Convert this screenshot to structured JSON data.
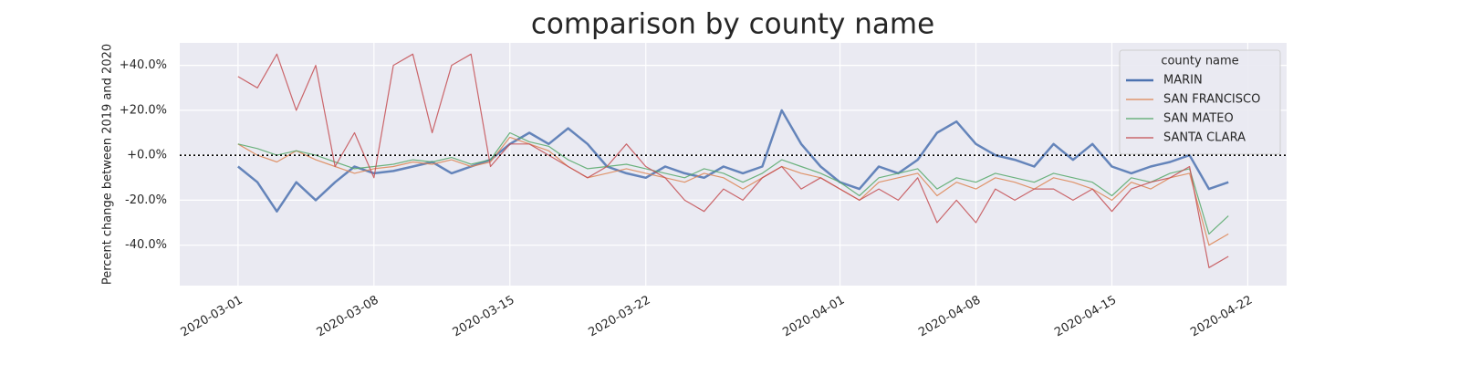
{
  "chart_data": {
    "type": "line",
    "title": "comparison by county name",
    "y_label": "Percent change between 2019 and 2020",
    "x": [
      "2020-03-01",
      "2020-03-02",
      "2020-03-03",
      "2020-03-04",
      "2020-03-05",
      "2020-03-06",
      "2020-03-07",
      "2020-03-08",
      "2020-03-09",
      "2020-03-10",
      "2020-03-11",
      "2020-03-12",
      "2020-03-13",
      "2020-03-14",
      "2020-03-15",
      "2020-03-16",
      "2020-03-17",
      "2020-03-18",
      "2020-03-19",
      "2020-03-20",
      "2020-03-21",
      "2020-03-22",
      "2020-03-23",
      "2020-03-24",
      "2020-03-25",
      "2020-03-26",
      "2020-03-27",
      "2020-03-28",
      "2020-03-29",
      "2020-03-30",
      "2020-03-31",
      "2020-04-01",
      "2020-04-02",
      "2020-04-03",
      "2020-04-04",
      "2020-04-05",
      "2020-04-06",
      "2020-04-07",
      "2020-04-08",
      "2020-04-09",
      "2020-04-10",
      "2020-04-11",
      "2020-04-12",
      "2020-04-13",
      "2020-04-14",
      "2020-04-15",
      "2020-04-16",
      "2020-04-17",
      "2020-04-18",
      "2020-04-19",
      "2020-04-20",
      "2020-04-21"
    ],
    "series": [
      {
        "name": "MARIN",
        "color": "#4c72b0",
        "linewidth": 2.5,
        "values": [
          -5,
          -12,
          -25,
          -12,
          -20,
          -12,
          -5,
          -8,
          -7,
          -5,
          -3,
          -8,
          -5,
          -2,
          5,
          10,
          5,
          12,
          5,
          -5,
          -8,
          -10,
          -5,
          -8,
          -10,
          -5,
          -8,
          -5,
          20,
          5,
          -5,
          -12,
          -15,
          -5,
          -8,
          -2,
          10,
          15,
          5,
          0,
          -2,
          -5,
          5,
          -2,
          5,
          -5,
          -8,
          -5,
          -3,
          0,
          -15,
          -12
        ]
      },
      {
        "name": "SAN FRANCISCO",
        "color": "#dd8452",
        "linewidth": 1.2,
        "values": [
          5,
          0,
          -3,
          2,
          -2,
          -5,
          -8,
          -6,
          -5,
          -3,
          -4,
          -2,
          -5,
          -3,
          8,
          5,
          2,
          -5,
          -10,
          -8,
          -6,
          -8,
          -10,
          -12,
          -8,
          -10,
          -15,
          -10,
          -5,
          -8,
          -10,
          -15,
          -20,
          -12,
          -10,
          -8,
          -18,
          -12,
          -15,
          -10,
          -12,
          -15,
          -10,
          -12,
          -15,
          -20,
          -12,
          -15,
          -10,
          -8,
          -40,
          -35
        ]
      },
      {
        "name": "SAN MATEO",
        "color": "#55a868",
        "linewidth": 1.2,
        "values": [
          5,
          3,
          0,
          2,
          0,
          -3,
          -6,
          -5,
          -4,
          -2,
          -3,
          -1,
          -4,
          -2,
          10,
          6,
          4,
          -2,
          -6,
          -5,
          -4,
          -6,
          -8,
          -10,
          -6,
          -8,
          -12,
          -8,
          -2,
          -5,
          -8,
          -12,
          -18,
          -10,
          -8,
          -6,
          -15,
          -10,
          -12,
          -8,
          -10,
          -12,
          -8,
          -10,
          -12,
          -18,
          -10,
          -12,
          -8,
          -6,
          -35,
          -27
        ]
      },
      {
        "name": "SANTA CLARA",
        "color": "#c44e52",
        "linewidth": 1.2,
        "values": [
          35,
          30,
          45,
          20,
          40,
          -5,
          10,
          -10,
          40,
          45,
          10,
          40,
          45,
          -5,
          5,
          5,
          0,
          -5,
          -10,
          -5,
          5,
          -5,
          -10,
          -20,
          -25,
          -15,
          -20,
          -10,
          -5,
          -15,
          -10,
          -15,
          -20,
          -15,
          -20,
          -10,
          -30,
          -20,
          -30,
          -15,
          -20,
          -15,
          -15,
          -20,
          -15,
          -25,
          -15,
          -12,
          -10,
          -5,
          -50,
          -45
        ]
      }
    ],
    "legend_title": "county name",
    "legend": "upper right",
    "xlim": [
      "2020-02-27",
      "2020-04-24"
    ],
    "xticks": [
      "2020-03-01",
      "2020-03-08",
      "2020-03-15",
      "2020-03-22",
      "2020-04-01",
      "2020-04-08",
      "2020-04-15",
      "2020-04-22"
    ],
    "ylim": [
      -58,
      50
    ],
    "yticks": [
      {
        "value": -40,
        "label": "-40.0%"
      },
      {
        "value": -20,
        "label": "-20.0%"
      },
      {
        "value": 0,
        "label": "+0.0%"
      },
      {
        "value": 20,
        "label": "+20.0%"
      },
      {
        "value": 40,
        "label": "+40.0%"
      }
    ],
    "hline": 0,
    "grid": true
  }
}
